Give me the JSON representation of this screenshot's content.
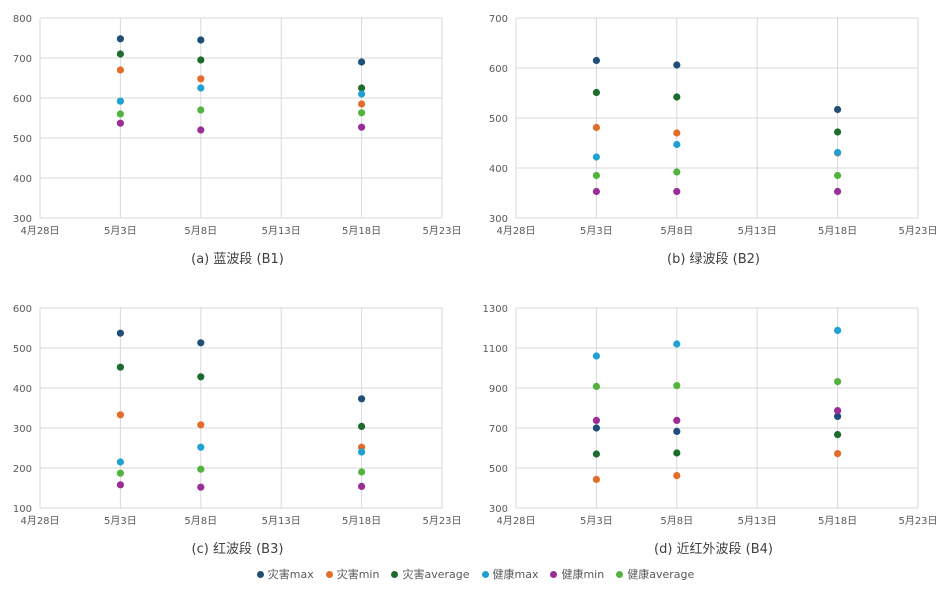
{
  "series_meta": [
    {
      "name": "灾害max",
      "color": "#1F4E79"
    },
    {
      "name": "灾害min",
      "color": "#E46C2B"
    },
    {
      "name": "灾害average",
      "color": "#1E6B2E"
    },
    {
      "name": "健康max",
      "color": "#1FA1D4"
    },
    {
      "name": "健康min",
      "color": "#9A2D98"
    },
    {
      "name": "健康average",
      "color": "#52B43E"
    }
  ],
  "chart_data": [
    {
      "type": "scatter",
      "caption": "(a) 蓝波段 (B1)",
      "ylim": [
        300,
        800
      ],
      "yticks": [
        300,
        400,
        500,
        600,
        700,
        800
      ],
      "xticks": [
        "4月28日",
        "5月3日",
        "5月8日",
        "5月13日",
        "5月18日",
        "5月23日"
      ],
      "x": [
        "5月3日",
        "5月8日",
        "5月18日"
      ],
      "grid": true,
      "series": [
        {
          "name": "灾害max",
          "values": [
            748,
            745,
            690
          ]
        },
        {
          "name": "灾害min",
          "values": [
            670,
            648,
            585
          ]
        },
        {
          "name": "灾害average",
          "values": [
            710,
            695,
            625
          ]
        },
        {
          "name": "健康max",
          "values": [
            592,
            625,
            610
          ]
        },
        {
          "name": "健康min",
          "values": [
            537,
            520,
            527
          ]
        },
        {
          "name": "健康average",
          "values": [
            560,
            570,
            563
          ]
        }
      ]
    },
    {
      "type": "scatter",
      "caption": "(b) 绿波段 (B2)",
      "ylim": [
        300,
        700
      ],
      "yticks": [
        300,
        400,
        500,
        600,
        700
      ],
      "xticks": [
        "4月28日",
        "5月3日",
        "5月8日",
        "5月13日",
        "5月18日",
        "5月23日"
      ],
      "x": [
        "5月3日",
        "5月8日",
        "5月18日"
      ],
      "grid": true,
      "series": [
        {
          "name": "灾害max",
          "values": [
            615,
            606,
            517
          ]
        },
        {
          "name": "灾害min",
          "values": [
            481,
            470,
            430
          ]
        },
        {
          "name": "灾害average",
          "values": [
            551,
            542,
            472
          ]
        },
        {
          "name": "健康max",
          "values": [
            422,
            447,
            431
          ]
        },
        {
          "name": "健康min",
          "values": [
            353,
            353,
            353
          ]
        },
        {
          "name": "健康average",
          "values": [
            385,
            392,
            385
          ]
        }
      ]
    },
    {
      "type": "scatter",
      "caption": "(c) 红波段 (B3)",
      "ylim": [
        100,
        600
      ],
      "yticks": [
        100,
        200,
        300,
        400,
        500,
        600
      ],
      "xticks": [
        "4月28日",
        "5月3日",
        "5月8日",
        "5月13日",
        "5月18日",
        "5月23日"
      ],
      "x": [
        "5月3日",
        "5月8日",
        "5月18日"
      ],
      "grid": true,
      "series": [
        {
          "name": "灾害max",
          "values": [
            537,
            513,
            373
          ]
        },
        {
          "name": "灾害min",
          "values": [
            333,
            308,
            252
          ]
        },
        {
          "name": "灾害average",
          "values": [
            452,
            428,
            304
          ]
        },
        {
          "name": "健康max",
          "values": [
            215,
            252,
            240
          ]
        },
        {
          "name": "健康min",
          "values": [
            158,
            152,
            154
          ]
        },
        {
          "name": "健康average",
          "values": [
            187,
            197,
            190
          ]
        }
      ]
    },
    {
      "type": "scatter",
      "caption": "(d) 近红外波段 (B4)",
      "ylim": [
        300,
        1300
      ],
      "yticks": [
        300,
        500,
        700,
        900,
        1100,
        1300
      ],
      "xticks": [
        "4月28日",
        "5月3日",
        "5月8日",
        "5月13日",
        "5月18日",
        "5月23日"
      ],
      "x": [
        "5月3日",
        "5月8日",
        "5月18日"
      ],
      "grid": true,
      "series": [
        {
          "name": "灾害max",
          "values": [
            700,
            683,
            758
          ]
        },
        {
          "name": "灾害min",
          "values": [
            443,
            462,
            572
          ]
        },
        {
          "name": "灾害average",
          "values": [
            570,
            575,
            667
          ]
        },
        {
          "name": "健康max",
          "values": [
            1060,
            1120,
            1188
          ]
        },
        {
          "name": "健康min",
          "values": [
            738,
            738,
            787
          ]
        },
        {
          "name": "健康average",
          "values": [
            908,
            912,
            932
          ]
        }
      ]
    }
  ]
}
